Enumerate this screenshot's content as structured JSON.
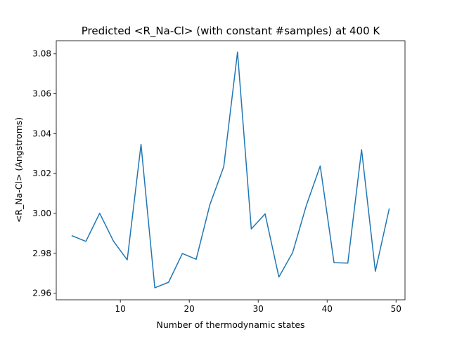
{
  "chart_data": {
    "type": "line",
    "title": "Predicted <R_Na-Cl> (with constant #samples) at 400 K",
    "xlabel": "Number of thermodynamic states",
    "ylabel": "<R_Na-Cl> (Angstroms)",
    "xlim": [
      0.7,
      51.3
    ],
    "ylim": [
      2.9567,
      3.0866
    ],
    "xticks": [
      10,
      20,
      30,
      40,
      50
    ],
    "yticks": [
      2.96,
      2.98,
      3.0,
      3.02,
      3.04,
      3.06,
      3.08
    ],
    "ytick_labels": [
      "2.96",
      "2.98",
      "3.00",
      "3.02",
      "3.04",
      "3.06",
      "3.08"
    ],
    "grid": false,
    "line_color": "#1f77b4",
    "series": [
      {
        "x": [
          3,
          5,
          7,
          9,
          11,
          13,
          15,
          17,
          19,
          21,
          23,
          25,
          27,
          29,
          31,
          33,
          35,
          37,
          39,
          41,
          43,
          45,
          47,
          49
        ],
        "values": [
          2.9888,
          2.986,
          3.0001,
          2.9861,
          2.9767,
          3.0346,
          2.9627,
          2.9655,
          2.9799,
          2.977,
          3.0045,
          3.0234,
          3.0809,
          2.9922,
          2.9998,
          2.9681,
          2.9804,
          3.0042,
          3.0238,
          2.9753,
          2.9751,
          3.032,
          2.971,
          3.0022
        ]
      }
    ]
  }
}
